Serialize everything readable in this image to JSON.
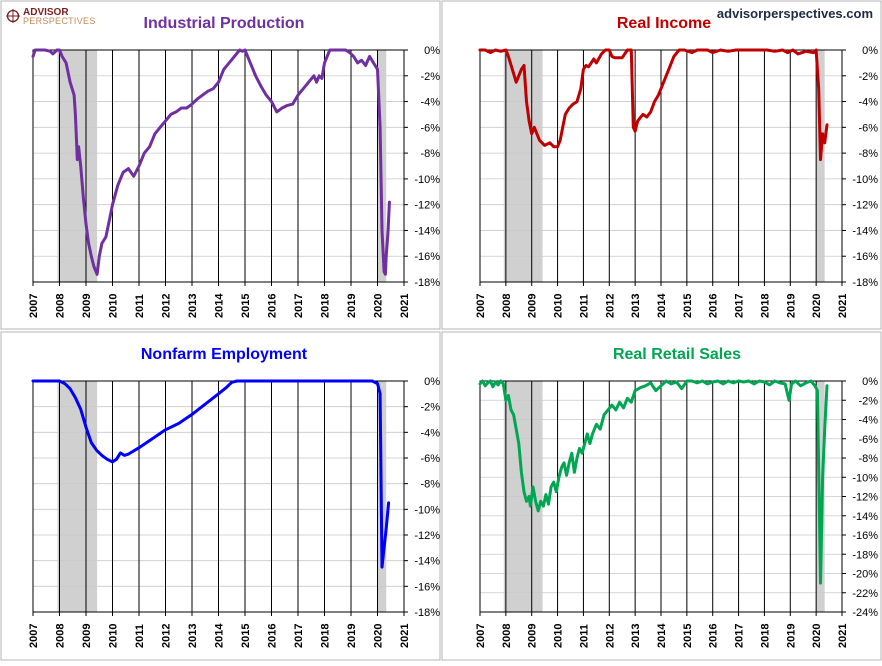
{
  "branding": {
    "logo_line1": "ADVISOR",
    "logo_line2": "PERSPECTIVES",
    "watermark": "advisorperspectives.com"
  },
  "chart_data": [
    {
      "type": "line",
      "title": "Industrial Production",
      "color": "#7030a0",
      "x_ticks": [
        "2007",
        "2008",
        "2009",
        "2010",
        "2011",
        "2012",
        "2013",
        "2014",
        "2015",
        "2016",
        "2017",
        "2018",
        "2019",
        "2020",
        "2021"
      ],
      "ylim": [
        -18,
        0
      ],
      "y_step": 2,
      "y_tick_labels": [
        "0%",
        "-2%",
        "-4%",
        "-6%",
        "-8%",
        "-10%",
        "-12%",
        "-14%",
        "-16%",
        "-18%"
      ],
      "recessions": [
        [
          2007.92,
          2009.42
        ],
        [
          2020.0,
          2020.33
        ]
      ],
      "series": [
        {
          "x": [
            2007.0,
            2007.08,
            2007.25,
            2007.45,
            2007.65,
            2007.75,
            2007.9,
            2008.0,
            2008.1,
            2008.25,
            2008.4,
            2008.55,
            2008.6,
            2008.67,
            2008.72,
            2008.8,
            2008.9,
            2009.0,
            2009.1,
            2009.2,
            2009.3,
            2009.42,
            2009.5,
            2009.6,
            2009.75,
            2009.9,
            2010.0,
            2010.2,
            2010.4,
            2010.6,
            2010.8,
            2011.0,
            2011.2,
            2011.4,
            2011.6,
            2011.8,
            2012.0,
            2012.2,
            2012.4,
            2012.6,
            2012.8,
            2013.0,
            2013.2,
            2013.4,
            2013.6,
            2013.8,
            2014.0,
            2014.2,
            2014.4,
            2014.6,
            2014.8,
            2014.9,
            2015.0,
            2015.2,
            2015.4,
            2015.6,
            2015.8,
            2016.0,
            2016.2,
            2016.4,
            2016.6,
            2016.8,
            2017.0,
            2017.2,
            2017.4,
            2017.6,
            2017.7,
            2017.8,
            2017.9,
            2018.0,
            2018.2,
            2018.4,
            2018.6,
            2018.8,
            2018.95,
            2019.1,
            2019.25,
            2019.4,
            2019.55,
            2019.7,
            2019.85,
            2020.0,
            2020.1,
            2020.17,
            2020.25,
            2020.3,
            2020.33,
            2020.4,
            2020.45
          ],
          "y": [
            -0.5,
            0.0,
            0.0,
            0.0,
            -0.1,
            -0.3,
            0.0,
            0.0,
            -0.5,
            -1.0,
            -2.5,
            -3.5,
            -5.0,
            -8.5,
            -7.5,
            -9.0,
            -11.5,
            -13.5,
            -15.0,
            -16.0,
            -16.8,
            -17.4,
            -16.0,
            -15.0,
            -14.5,
            -13.0,
            -12.0,
            -10.5,
            -9.5,
            -9.2,
            -9.8,
            -9.0,
            -8.0,
            -7.5,
            -6.5,
            -6.0,
            -5.5,
            -5.0,
            -4.8,
            -4.5,
            -4.5,
            -4.2,
            -3.8,
            -3.5,
            -3.2,
            -3.0,
            -2.5,
            -1.5,
            -1.0,
            -0.5,
            0.0,
            -0.1,
            0.0,
            -1.0,
            -2.0,
            -2.8,
            -3.5,
            -4.0,
            -4.8,
            -4.5,
            -4.3,
            -4.2,
            -3.5,
            -3.0,
            -2.5,
            -2.0,
            -2.5,
            -2.0,
            -2.2,
            -1.0,
            0.0,
            0.0,
            0.0,
            0.0,
            -0.2,
            -0.5,
            -1.0,
            -0.8,
            -1.2,
            -0.5,
            -1.0,
            -1.5,
            -6.0,
            -14.0,
            -17.2,
            -17.4,
            -16.0,
            -14.0,
            -11.8
          ]
        }
      ]
    },
    {
      "type": "line",
      "title": "Real Income",
      "color": "#c00000",
      "x_ticks": [
        "2007",
        "2008",
        "2009",
        "2010",
        "2011",
        "2012",
        "2013",
        "2014",
        "2015",
        "2016",
        "2017",
        "2018",
        "2019",
        "2020",
        "2021"
      ],
      "ylim": [
        -18,
        0
      ],
      "y_step": 2,
      "y_tick_labels": [
        "0%",
        "-2%",
        "-4%",
        "-6%",
        "-8%",
        "-10%",
        "-12%",
        "-14%",
        "-16%",
        "-18%"
      ],
      "recessions": [
        [
          2007.92,
          2009.42
        ],
        [
          2020.0,
          2020.33
        ]
      ],
      "series": [
        {
          "x": [
            2007.0,
            2007.2,
            2007.4,
            2007.6,
            2007.8,
            2008.0,
            2008.1,
            2008.25,
            2008.4,
            2008.5,
            2008.6,
            2008.7,
            2008.8,
            2008.9,
            2009.0,
            2009.1,
            2009.2,
            2009.3,
            2009.5,
            2009.7,
            2009.85,
            2010.0,
            2010.1,
            2010.2,
            2010.3,
            2010.45,
            2010.6,
            2010.75,
            2010.9,
            2011.0,
            2011.1,
            2011.2,
            2011.4,
            2011.5,
            2011.7,
            2011.85,
            2012.0,
            2012.1,
            2012.2,
            2012.5,
            2012.7,
            2012.85,
            2012.93,
            2013.0,
            2013.1,
            2013.3,
            2013.45,
            2013.6,
            2013.75,
            2013.9,
            2014.1,
            2014.3,
            2014.5,
            2014.7,
            2014.9,
            2015.2,
            2015.4,
            2015.6,
            2015.8,
            2016.0,
            2016.3,
            2016.6,
            2016.9,
            2017.2,
            2017.5,
            2017.8,
            2018.1,
            2018.4,
            2018.7,
            2018.9,
            2019.1,
            2019.3,
            2019.6,
            2019.9,
            2020.0,
            2020.1,
            2020.17,
            2020.25,
            2020.33,
            2020.42
          ],
          "y": [
            0.0,
            0.0,
            -0.2,
            0.0,
            -0.1,
            0.0,
            -0.5,
            -1.5,
            -2.5,
            -2.0,
            -1.5,
            -1.2,
            -4.0,
            -5.5,
            -6.5,
            -6.0,
            -6.5,
            -7.0,
            -7.4,
            -7.2,
            -7.5,
            -7.5,
            -7.0,
            -6.0,
            -5.0,
            -4.5,
            -4.2,
            -4.0,
            -3.0,
            -1.5,
            -1.2,
            -1.3,
            -0.7,
            -1.0,
            -0.3,
            0.0,
            0.0,
            -0.5,
            -0.6,
            -0.6,
            0.0,
            0.0,
            -6.0,
            -6.3,
            -5.5,
            -5.0,
            -5.2,
            -4.8,
            -4.0,
            -3.5,
            -2.5,
            -1.5,
            -0.5,
            0.0,
            0.0,
            -0.2,
            0.0,
            0.0,
            0.0,
            -0.2,
            0.0,
            -0.1,
            0.0,
            0.0,
            0.0,
            0.0,
            0.0,
            -0.1,
            0.0,
            -0.2,
            0.0,
            -0.3,
            -0.1,
            -0.2,
            0.0,
            -3.0,
            -8.5,
            -6.5,
            -7.2,
            -5.8
          ]
        }
      ]
    },
    {
      "type": "line",
      "title": "Nonfarm Employment",
      "color": "#0000ff",
      "x_ticks": [
        "2007",
        "2008",
        "2009",
        "2010",
        "2011",
        "2012",
        "2013",
        "2014",
        "2015",
        "2016",
        "2017",
        "2018",
        "2019",
        "2020",
        "2021"
      ],
      "ylim": [
        -18,
        0
      ],
      "y_step": 2,
      "y_tick_labels": [
        "0%",
        "-2%",
        "-4%",
        "-6%",
        "-8%",
        "-10%",
        "-12%",
        "-14%",
        "-16%",
        "-18%"
      ],
      "recessions": [
        [
          2007.92,
          2009.42
        ],
        [
          2020.0,
          2020.33
        ]
      ],
      "series": [
        {
          "x": [
            2007.0,
            2007.5,
            2007.9,
            2008.0,
            2008.2,
            2008.4,
            2008.6,
            2008.8,
            2009.0,
            2009.2,
            2009.4,
            2009.6,
            2009.8,
            2010.0,
            2010.15,
            2010.3,
            2010.45,
            2010.6,
            2011.0,
            2011.5,
            2012.0,
            2012.5,
            2013.0,
            2013.5,
            2014.0,
            2014.3,
            2014.5,
            2014.7,
            2015.0,
            2016.0,
            2017.0,
            2018.0,
            2019.0,
            2019.8,
            2020.0,
            2020.1,
            2020.17,
            2020.25,
            2020.33,
            2020.42
          ],
          "y": [
            0.0,
            0.0,
            0.0,
            0.0,
            -0.2,
            -0.6,
            -1.3,
            -2.2,
            -3.6,
            -4.8,
            -5.4,
            -5.8,
            -6.1,
            -6.3,
            -6.1,
            -5.6,
            -5.8,
            -5.7,
            -5.2,
            -4.5,
            -3.8,
            -3.3,
            -2.6,
            -1.8,
            -1.0,
            -0.5,
            -0.1,
            0.0,
            0.0,
            0.0,
            0.0,
            0.0,
            0.0,
            0.0,
            -0.2,
            -1.0,
            -14.5,
            -13.0,
            -11.5,
            -9.5
          ]
        }
      ]
    },
    {
      "type": "line",
      "title": "Real Retail Sales",
      "color": "#00a651",
      "x_ticks": [
        "2007",
        "2008",
        "2009",
        "2010",
        "2011",
        "2012",
        "2013",
        "2014",
        "2015",
        "2016",
        "2017",
        "2018",
        "2019",
        "2020",
        "2021"
      ],
      "ylim": [
        -24,
        0
      ],
      "y_step": 2,
      "y_tick_labels": [
        "0%",
        "-2%",
        "-4%",
        "-6%",
        "-8%",
        "-10%",
        "-12%",
        "-14%",
        "-16%",
        "-18%",
        "-20%",
        "-22%",
        "-24%"
      ],
      "recessions": [
        [
          2007.92,
          2009.42
        ],
        [
          2020.0,
          2020.33
        ]
      ],
      "series": [
        {
          "x": [
            2007.0,
            2007.1,
            2007.2,
            2007.3,
            2007.4,
            2007.5,
            2007.6,
            2007.7,
            2007.8,
            2007.9,
            2008.0,
            2008.1,
            2008.2,
            2008.3,
            2008.4,
            2008.5,
            2008.6,
            2008.7,
            2008.8,
            2008.9,
            2008.95,
            2009.05,
            2009.15,
            2009.25,
            2009.35,
            2009.45,
            2009.55,
            2009.65,
            2009.75,
            2009.85,
            2009.95,
            2010.05,
            2010.15,
            2010.25,
            2010.35,
            2010.45,
            2010.55,
            2010.65,
            2010.75,
            2010.85,
            2010.95,
            2011.05,
            2011.15,
            2011.25,
            2011.35,
            2011.5,
            2011.65,
            2011.8,
            2011.95,
            2012.1,
            2012.25,
            2012.4,
            2012.55,
            2012.7,
            2012.85,
            2013.0,
            2013.2,
            2013.4,
            2013.6,
            2013.8,
            2014.0,
            2014.2,
            2014.4,
            2014.6,
            2014.8,
            2015.0,
            2015.2,
            2015.4,
            2015.6,
            2015.8,
            2016.0,
            2016.2,
            2016.4,
            2016.6,
            2016.8,
            2017.0,
            2017.2,
            2017.4,
            2017.6,
            2017.8,
            2018.0,
            2018.2,
            2018.4,
            2018.6,
            2018.8,
            2018.95,
            2019.05,
            2019.2,
            2019.4,
            2019.6,
            2019.8,
            2019.95,
            2020.05,
            2020.17,
            2020.25,
            2020.33,
            2020.42
          ],
          "y": [
            -0.3,
            0.0,
            -0.5,
            -0.2,
            0.0,
            -0.6,
            -0.1,
            -0.4,
            0.0,
            -0.3,
            -2.0,
            -1.5,
            -3.0,
            -3.5,
            -5.0,
            -6.5,
            -9.5,
            -11.5,
            -12.5,
            -12.0,
            -13.0,
            -11.0,
            -12.5,
            -13.5,
            -12.5,
            -13.0,
            -11.8,
            -12.8,
            -11.0,
            -10.5,
            -11.5,
            -10.0,
            -9.0,
            -8.5,
            -9.8,
            -8.5,
            -7.5,
            -9.5,
            -8.0,
            -7.0,
            -7.5,
            -6.5,
            -5.5,
            -6.5,
            -5.5,
            -4.5,
            -5.0,
            -3.5,
            -3.0,
            -2.5,
            -3.0,
            -2.2,
            -2.8,
            -1.8,
            -2.2,
            -1.0,
            -0.7,
            -0.5,
            -0.2,
            -1.0,
            -0.5,
            0.0,
            -0.3,
            -0.1,
            -0.8,
            0.0,
            0.0,
            -0.2,
            0.0,
            -0.3,
            -0.1,
            0.0,
            -0.3,
            0.0,
            -0.2,
            0.0,
            -0.1,
            0.0,
            -0.3,
            0.0,
            -0.1,
            -0.4,
            0.0,
            -0.2,
            -0.3,
            -2.0,
            -0.3,
            0.0,
            -0.5,
            -0.2,
            0.0,
            -0.5,
            -1.0,
            -21.0,
            -10.0,
            -5.0,
            -0.5
          ]
        }
      ]
    }
  ]
}
